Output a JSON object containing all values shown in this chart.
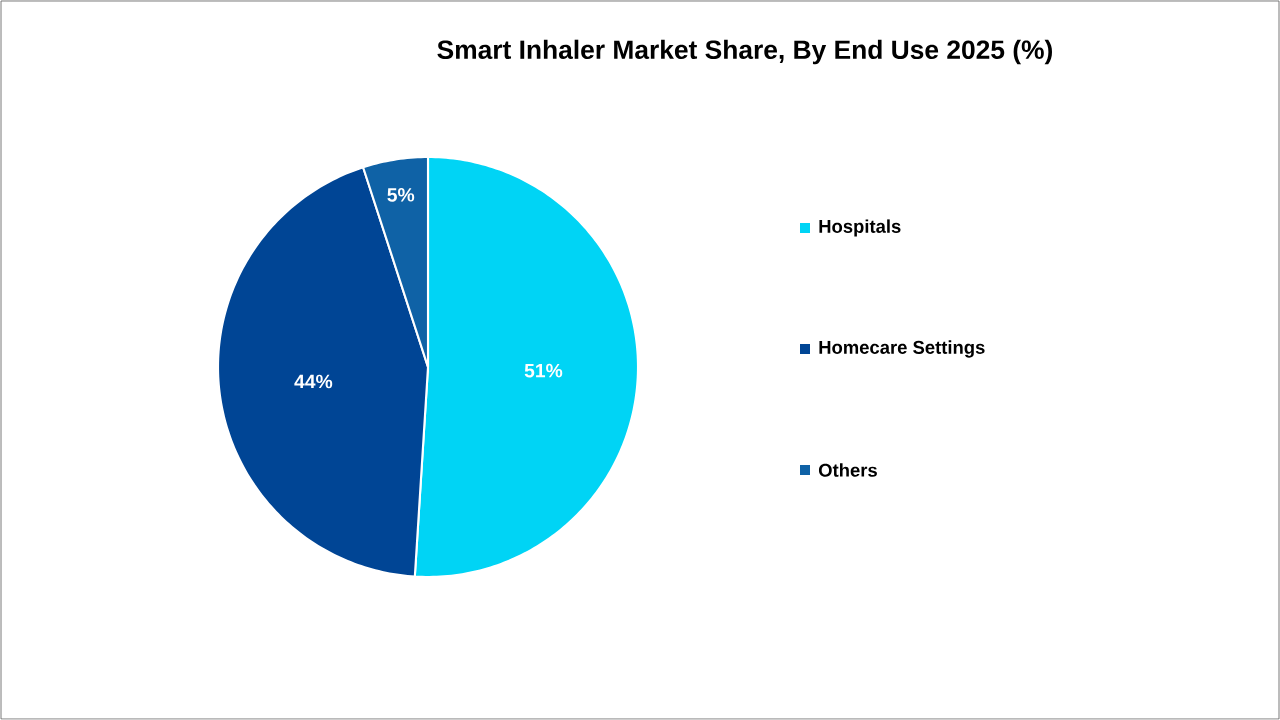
{
  "chart_data": {
    "type": "pie",
    "title": "Smart Inhaler Market Share, By End Use 2025 (%)",
    "categories": [
      "Hospitals",
      "Homecare Settings",
      "Others"
    ],
    "values": [
      51,
      44,
      5
    ],
    "value_labels": [
      "51%",
      "44%",
      "5%"
    ],
    "colors": [
      "#00d4f5",
      "#004595",
      "#0f62a6"
    ],
    "legend": "right"
  }
}
